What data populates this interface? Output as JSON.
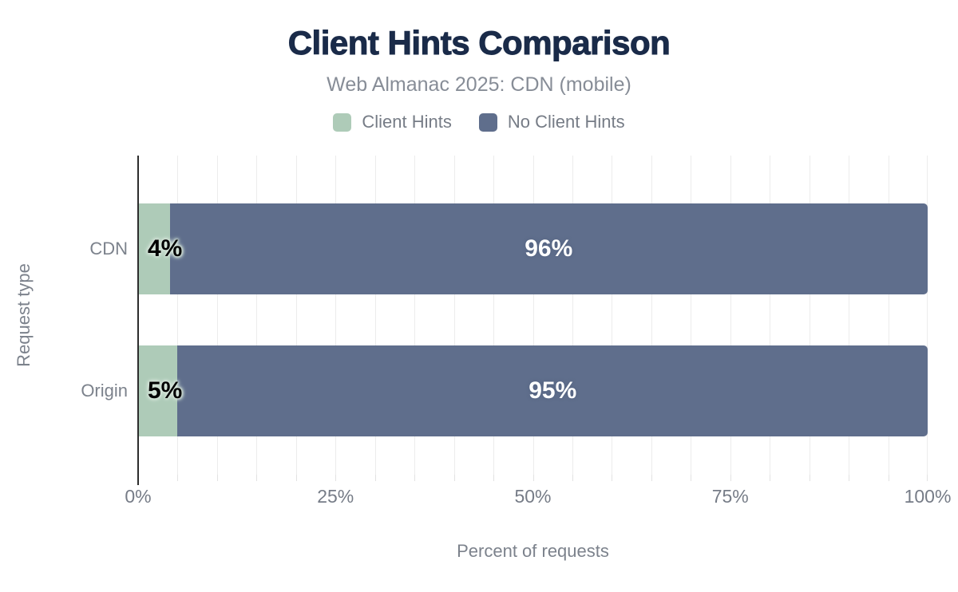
{
  "title": "Client Hints Comparison",
  "subtitle": "Web Almanac 2025: CDN (mobile)",
  "legend": [
    {
      "label": "Client Hints",
      "color": "#aecbb8"
    },
    {
      "label": "No Client Hints",
      "color": "#5f6e8c"
    }
  ],
  "colors": {
    "title": "#1a2b49",
    "client_hints_green": "#aecbb8",
    "no_client_hints_slate": "#5f6e8c",
    "gridline": "#ececec",
    "axis_line": "#2d2d2d",
    "secondary_text": "#7c828c"
  },
  "chart_data": {
    "type": "bar",
    "orientation": "horizontal",
    "stacked": true,
    "title": "Client Hints Comparison",
    "subtitle": "Web Almanac 2025: CDN (mobile)",
    "categories": [
      "CDN",
      "Origin"
    ],
    "series": [
      {
        "name": "Client Hints",
        "color": "#aecbb8",
        "values": [
          4,
          5
        ]
      },
      {
        "name": "No Client Hints",
        "color": "#5f6e8c",
        "values": [
          96,
          95
        ]
      }
    ],
    "data_labels": [
      [
        "4%",
        "96%"
      ],
      [
        "5%",
        "95%"
      ]
    ],
    "xlabel": "Percent of requests",
    "ylabel": "Request type",
    "xlim": [
      0,
      100
    ],
    "xticks": [
      "0%",
      "25%",
      "50%",
      "75%",
      "100%"
    ],
    "grid": "vertical gridlines every 5%",
    "legend_position": "top"
  }
}
